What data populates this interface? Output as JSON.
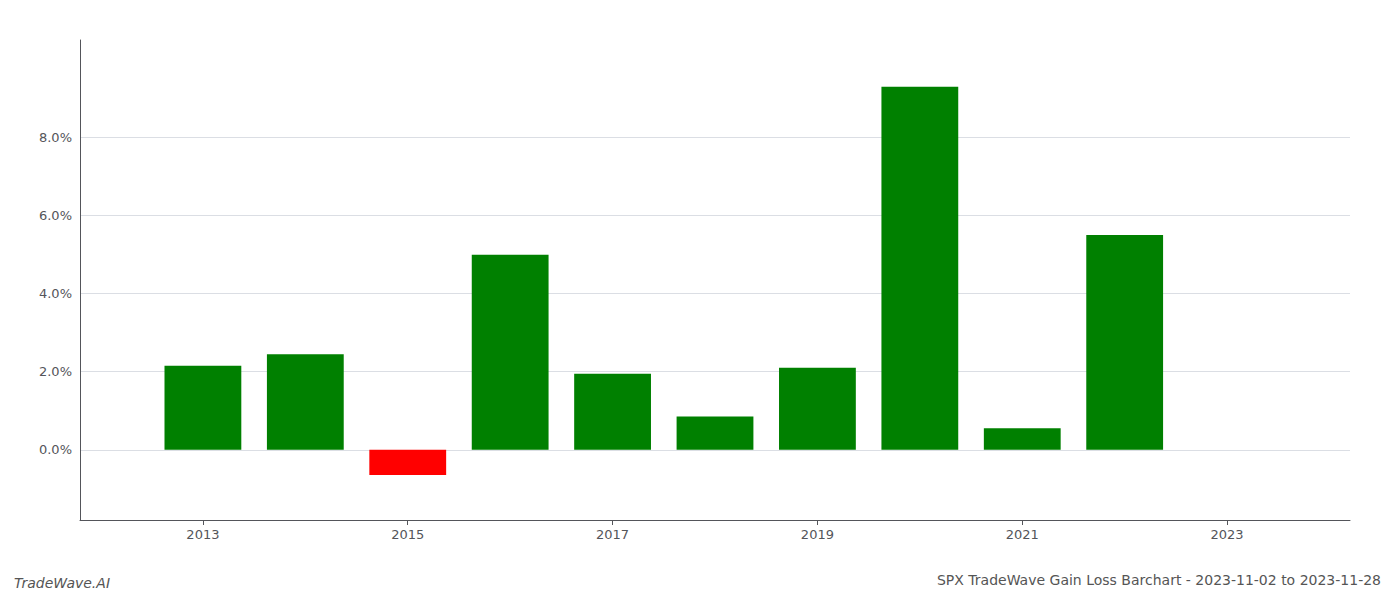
{
  "chart_data": {
    "type": "bar",
    "title": "SPX TradeWave Gain Loss Barchart - 2023-11-02 to 2023-11-28",
    "annotations": [
      "TradeWave.AI"
    ],
    "x": [
      2013,
      2014,
      2015,
      2016,
      2017,
      2018,
      2019,
      2020,
      2021,
      2022
    ],
    "values": [
      0.0215,
      0.0245,
      -0.0065,
      0.05,
      0.0195,
      0.0085,
      0.021,
      0.093,
      0.0055,
      0.055
    ],
    "colors": [
      "#008000",
      "#008000",
      "#ff0000",
      "#008000",
      "#008000",
      "#008000",
      "#008000",
      "#008000",
      "#008000",
      "#008000"
    ],
    "xlim": [
      2011.8,
      2024.2
    ],
    "xticks": [
      2013,
      2015,
      2017,
      2019,
      2021,
      2023
    ],
    "ylim": [
      -0.018,
      0.105
    ],
    "yticks": [
      {
        "value": 0.0,
        "label": "0.0%"
      },
      {
        "value": 0.02,
        "label": "2.0%"
      },
      {
        "value": 0.04,
        "label": "4.0%"
      },
      {
        "value": 0.06,
        "label": "6.0%"
      },
      {
        "value": 0.08,
        "label": "8.0%"
      }
    ],
    "grid": true
  }
}
